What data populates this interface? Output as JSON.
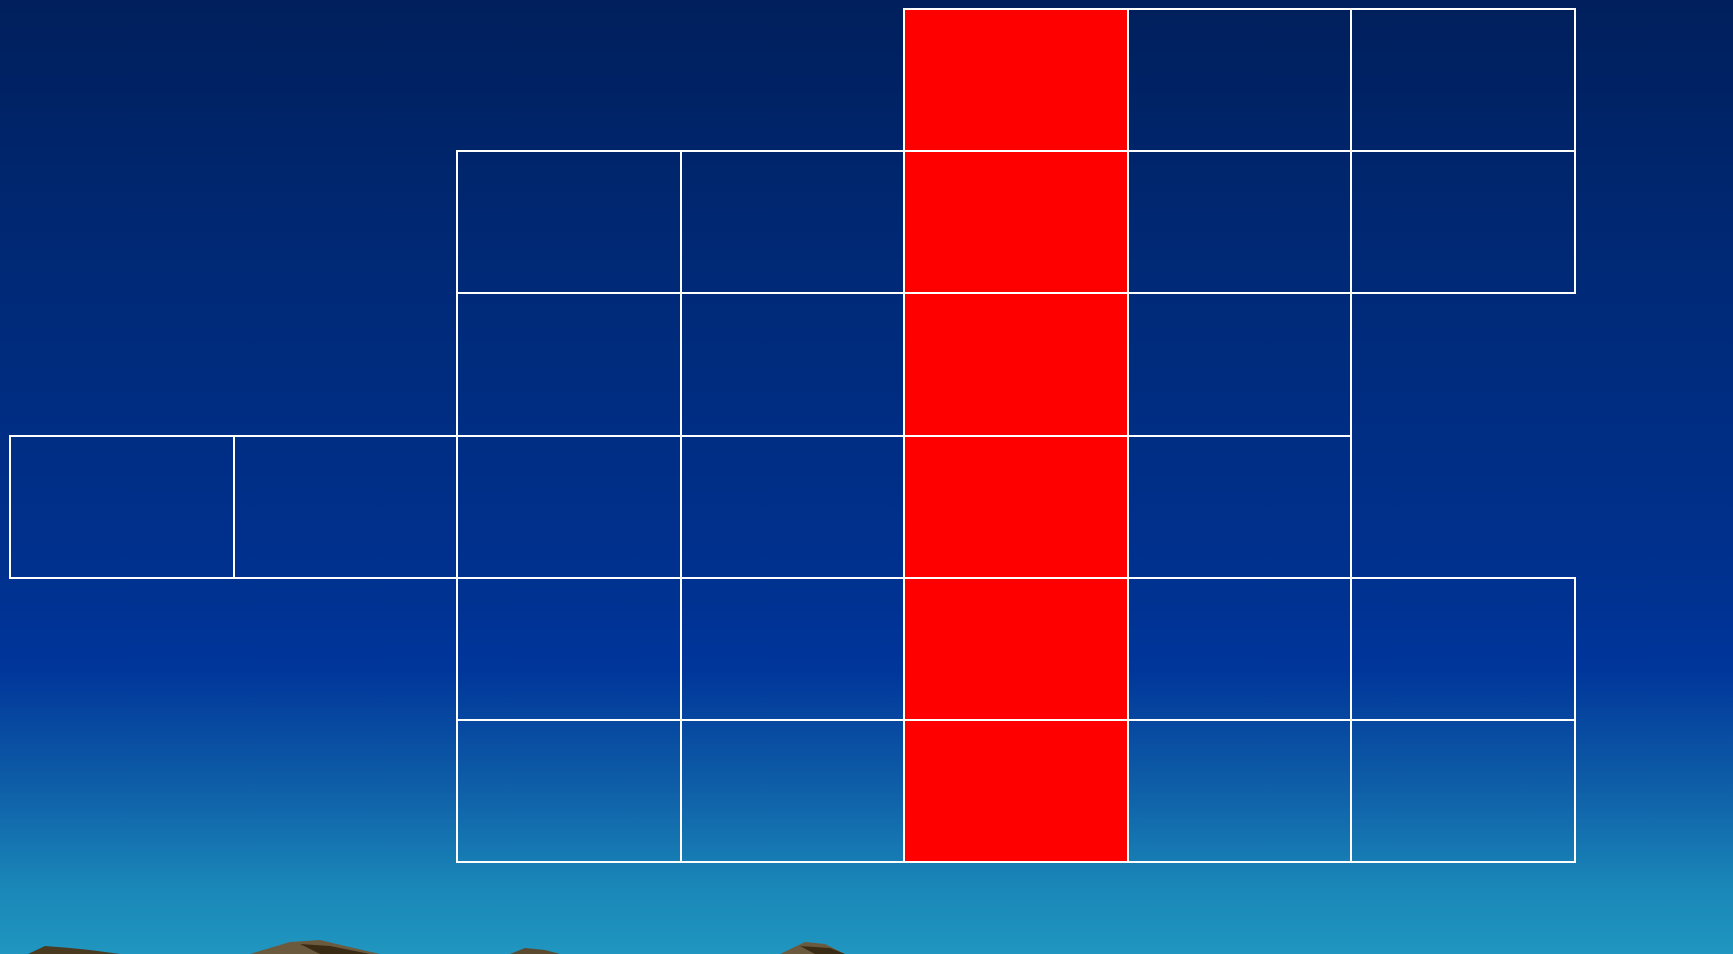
{
  "scene": {
    "grid": {
      "columns": 7,
      "rows": 6,
      "highlighted_column": 4,
      "highlight_color": "#ff0000",
      "line_color": "#ffffff",
      "filled_cells": [
        [
          0,
          0,
          0,
          0,
          1,
          1,
          1
        ],
        [
          0,
          0,
          1,
          1,
          1,
          1,
          1
        ],
        [
          0,
          0,
          1,
          1,
          1,
          1,
          0
        ],
        [
          1,
          1,
          1,
          1,
          1,
          1,
          0
        ],
        [
          0,
          0,
          1,
          1,
          1,
          1,
          1
        ],
        [
          0,
          0,
          1,
          1,
          1,
          1,
          1
        ]
      ]
    },
    "background": {
      "top_color": "#001f5c",
      "bottom_color": "#2096c0"
    }
  }
}
